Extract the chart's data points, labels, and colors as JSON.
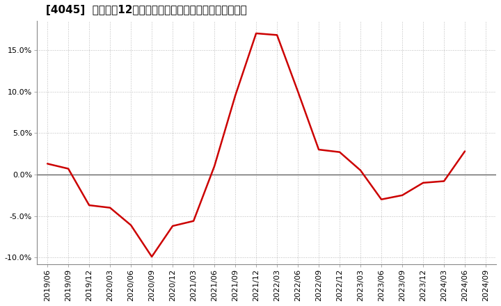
{
  "title": "[4045]  売上高の12か月移動合計の対前年同期増減率の推移",
  "line_color": "#cc0000",
  "background_color": "#ffffff",
  "plot_bg_color": "#ffffff",
  "grid_color": "#aaaaaa",
  "ylim": [
    -0.108,
    0.185
  ],
  "yticks": [
    -0.1,
    -0.05,
    0.0,
    0.05,
    0.1,
    0.15
  ],
  "dates": [
    "2019/06",
    "2019/09",
    "2019/12",
    "2020/03",
    "2020/06",
    "2020/09",
    "2020/12",
    "2021/03",
    "2021/06",
    "2021/09",
    "2021/12",
    "2022/03",
    "2022/06",
    "2022/09",
    "2022/12",
    "2023/03",
    "2023/06",
    "2023/09",
    "2023/12",
    "2024/03",
    "2024/06",
    "2024/09"
  ],
  "values": [
    0.013,
    0.007,
    -0.037,
    -0.04,
    -0.061,
    -0.099,
    -0.062,
    -0.056,
    0.01,
    0.095,
    0.17,
    0.168,
    0.1,
    0.03,
    0.027,
    0.005,
    -0.03,
    -0.025,
    -0.01,
    -0.008,
    0.028,
    null
  ],
  "title_fontsize": 11,
  "tick_fontsize": 8,
  "line_width": 1.8
}
